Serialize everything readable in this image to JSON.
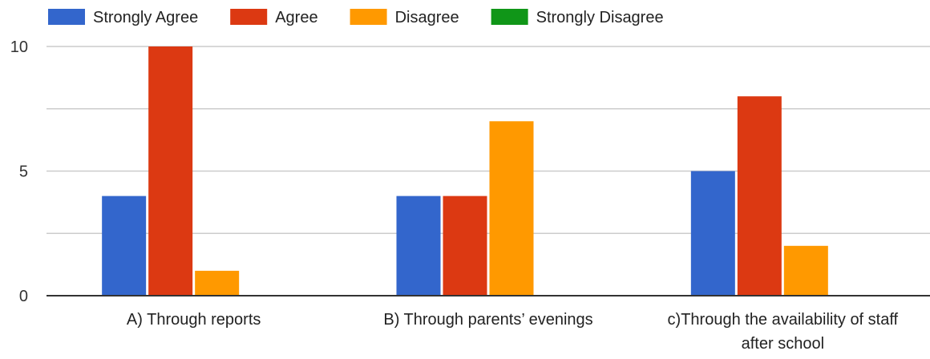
{
  "chart_data": {
    "type": "bar",
    "title": "",
    "xlabel": "",
    "ylabel": "",
    "categories": [
      [
        "A) Through reports"
      ],
      [
        "B) Through parents’ evenings"
      ],
      [
        "c)Through the availability of staff",
        "after school"
      ]
    ],
    "series": [
      {
        "name": "Strongly Agree",
        "color": "#3366cc",
        "values": [
          4,
          4,
          5
        ]
      },
      {
        "name": "Agree",
        "color": "#dc3912",
        "values": [
          10,
          4,
          8
        ]
      },
      {
        "name": "Disagree",
        "color": "#ff9900",
        "values": [
          1,
          7,
          2
        ]
      },
      {
        "name": "Strongly Disagree",
        "color": "#109618",
        "values": [
          0,
          0,
          0
        ]
      }
    ],
    "ylim": [
      0,
      10
    ],
    "yticks": [
      "0",
      "5",
      "10"
    ],
    "grid": true,
    "legend_position": "top"
  }
}
